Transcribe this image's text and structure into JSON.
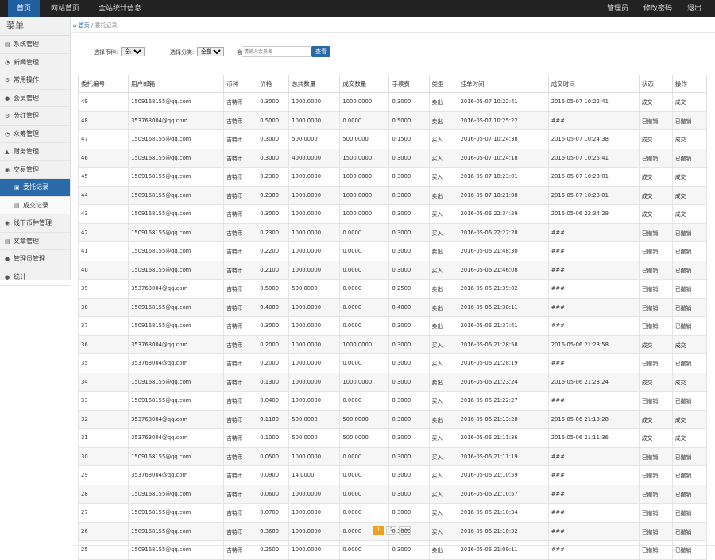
{
  "topbar": {
    "home": "首页",
    "site_home": "网站首页",
    "stats": "全站统计信息",
    "admin": "管理员",
    "change_password": "修改密码",
    "logout": "退出"
  },
  "sidebar": {
    "title": "菜单",
    "items": [
      {
        "icon": "gear-icon",
        "glyph": "▤",
        "label": "系统管理"
      },
      {
        "icon": "clock-icon",
        "glyph": "◔",
        "label": "新闻管理"
      },
      {
        "icon": "gear-icon",
        "glyph": "⚙",
        "label": "常用操作"
      },
      {
        "icon": "user-icon",
        "glyph": "●",
        "label": "会员管理"
      },
      {
        "icon": "gear-icon",
        "glyph": "⚙",
        "label": "分红管理"
      },
      {
        "icon": "clock-icon",
        "glyph": "◔",
        "label": "众筹管理"
      },
      {
        "icon": "fire-icon",
        "glyph": "▲",
        "label": "财务管理"
      },
      {
        "icon": "chevron-circle-icon",
        "glyph": "◉",
        "label": "交易管理"
      },
      {
        "icon": "entrust-icon",
        "glyph": "▣",
        "label": "委托记录",
        "sub": true,
        "active": true
      },
      {
        "icon": "document-icon",
        "glyph": "▤",
        "label": "成交记录",
        "sub": true
      },
      {
        "icon": "chevron-circle-icon",
        "glyph": "◉",
        "label": "线下币种管理"
      },
      {
        "icon": "document-icon",
        "glyph": "▤",
        "label": "文章管理"
      },
      {
        "icon": "user-icon",
        "glyph": "●",
        "label": "管理员管理"
      },
      {
        "icon": "user-icon",
        "glyph": "●",
        "label": "统计"
      }
    ]
  },
  "breadcrumb": {
    "home": "首页",
    "sep": "/",
    "current": "委托记录"
  },
  "filters": {
    "coin_label": "选择币种:",
    "coin_value": "全部",
    "type_label": "选择分类:",
    "type_value": "全部",
    "user_label": "会员名称:",
    "user_placeholder": "请输入会员名",
    "search_button": "查看"
  },
  "table": {
    "headers": [
      "委托编号",
      "用户邮箱",
      "币种",
      "价格",
      "总共数量",
      "成交数量",
      "手续费",
      "类型",
      "挂单时间",
      "成交时间",
      "状态",
      "操作"
    ],
    "rows": [
      [
        "49",
        "1509168155@qq.com",
        "吉特币",
        "0.3000",
        "1000.0000",
        "1000.0000",
        "0.3000",
        "卖出",
        "2016-05-07 10:22:41",
        "2016-05-07 10:22:41",
        "成交",
        "成交"
      ],
      [
        "48",
        "353763004@qq.com",
        "吉特币",
        "0.5000",
        "1000.0000",
        "0.0000",
        "0.5000",
        "卖出",
        "2016-05-07 10:25:22",
        "###",
        "已撤销",
        "已撤销"
      ],
      [
        "47",
        "1509168155@qq.com",
        "吉特币",
        "0.3000",
        "500.0000",
        "500.0000",
        "0.1500",
        "买入",
        "2016-05-07 10:24:38",
        "2016-05-07 10:24:38",
        "成交",
        "成交"
      ],
      [
        "46",
        "1509168155@qq.com",
        "吉特币",
        "0.3000",
        "4000.0000",
        "1500.0000",
        "0.3000",
        "买入",
        "2016-05-07 10:24:18",
        "2016-05-07 10:25:41",
        "已撤销",
        "已撤销"
      ],
      [
        "45",
        "1509168155@qq.com",
        "吉特币",
        "0.2300",
        "1000.0000",
        "1000.0000",
        "0.3000",
        "买入",
        "2016-05-07 10:23:01",
        "2016-05-07 10:23:01",
        "成交",
        "成交"
      ],
      [
        "44",
        "1509168155@qq.com",
        "吉特币",
        "0.2300",
        "1000.0000",
        "1000.0000",
        "0.3000",
        "卖出",
        "2016-05-07 10:21:08",
        "2016-05-07 10:23:01",
        "成交",
        "成交"
      ],
      [
        "43",
        "1509168155@qq.com",
        "吉特币",
        "0.3000",
        "1000.0000",
        "1000.0000",
        "0.3000",
        "买入",
        "2016-05-06 22:34:29",
        "2016-05-06 22:34:29",
        "成交",
        "成交"
      ],
      [
        "42",
        "1509168155@qq.com",
        "吉特币",
        "0.2300",
        "1000.0000",
        "0.0000",
        "0.3000",
        "买入",
        "2016-05-06 22:27:28",
        "###",
        "已撤销",
        "已撤销"
      ],
      [
        "41",
        "1509168155@qq.com",
        "吉特币",
        "0.2200",
        "1000.0000",
        "0.0000",
        "0.3000",
        "卖出",
        "2016-05-06 21:48:30",
        "###",
        "已撤销",
        "已撤销"
      ],
      [
        "40",
        "1509168155@qq.com",
        "吉特币",
        "0.2100",
        "1000.0000",
        "0.0000",
        "0.3000",
        "买入",
        "2016-05-06 21:46:08",
        "###",
        "已撤销",
        "已撤销"
      ],
      [
        "39",
        "353763004@qq.com",
        "吉特币",
        "0.5000",
        "500.0000",
        "0.0000",
        "0.2500",
        "卖出",
        "2016-05-06 21:39:02",
        "###",
        "已撤销",
        "已撤销"
      ],
      [
        "38",
        "1509168155@qq.com",
        "吉特币",
        "0.4000",
        "1000.0000",
        "0.0000",
        "0.4000",
        "卖出",
        "2016-05-06 21:38:11",
        "###",
        "已撤销",
        "已撤销"
      ],
      [
        "37",
        "1509168155@qq.com",
        "吉特币",
        "0.3000",
        "1000.0000",
        "0.0000",
        "0.3000",
        "卖出",
        "2016-05-06 21:37:41",
        "###",
        "已撤销",
        "已撤销"
      ],
      [
        "36",
        "353763004@qq.com",
        "吉特币",
        "0.2000",
        "1000.0000",
        "1000.0000",
        "0.3000",
        "买入",
        "2016-05-06 21:28:58",
        "2016-05-06 21:28:58",
        "成交",
        "成交"
      ],
      [
        "35",
        "353763004@qq.com",
        "吉特币",
        "0.2000",
        "1000.0000",
        "0.0000",
        "0.3000",
        "买入",
        "2016-05-06 21:28:19",
        "###",
        "已撤销",
        "已撤销"
      ],
      [
        "34",
        "1509168155@qq.com",
        "吉特币",
        "0.1300",
        "1000.0000",
        "1000.0000",
        "0.3000",
        "卖出",
        "2016-05-06 21:23:24",
        "2016-05-06 21:23:24",
        "成交",
        "成交"
      ],
      [
        "33",
        "1509168155@qq.com",
        "吉特币",
        "0.0400",
        "1000.0000",
        "0.0000",
        "0.3000",
        "买入",
        "2016-05-06 21:22:27",
        "###",
        "已撤销",
        "已撤销"
      ],
      [
        "32",
        "353763004@qq.com",
        "吉特币",
        "0.1100",
        "500.0000",
        "500.0000",
        "0.3000",
        "卖出",
        "2016-05-06 21:13:28",
        "2016-05-06 21:13:28",
        "成交",
        "成交"
      ],
      [
        "31",
        "353763004@qq.com",
        "吉特币",
        "0.1000",
        "500.0000",
        "500.0000",
        "0.3000",
        "买入",
        "2016-05-06 21:11:36",
        "2016-05-06 21:11:36",
        "成交",
        "成交"
      ],
      [
        "30",
        "1509168155@qq.com",
        "吉特币",
        "0.0500",
        "1000.0000",
        "0.0000",
        "0.3000",
        "买入",
        "2016-05-06 21:11:19",
        "###",
        "已撤销",
        "已撤销"
      ],
      [
        "29",
        "353763004@qq.com",
        "吉特币",
        "0.0900",
        "14.0000",
        "0.0000",
        "0.3000",
        "买入",
        "2016-05-06 21:10:59",
        "###",
        "已撤销",
        "已撤销"
      ],
      [
        "28",
        "1509168155@qq.com",
        "吉特币",
        "0.0600",
        "1000.0000",
        "0.0000",
        "0.3000",
        "买入",
        "2016-05-06 21:10:57",
        "###",
        "已撤销",
        "已撤销"
      ],
      [
        "27",
        "1509168155@qq.com",
        "吉特币",
        "0.0700",
        "1000.0000",
        "0.0000",
        "0.3000",
        "买入",
        "2016-05-06 21:10:34",
        "###",
        "已撤销",
        "已撤销"
      ],
      [
        "26",
        "1509168155@qq.com",
        "吉特币",
        "0.3600",
        "1000.0000",
        "0.0000",
        "0.3000",
        "买入",
        "2016-05-06 21:10:32",
        "###",
        "已撤销",
        "已撤销"
      ],
      [
        "25",
        "1509168155@qq.com",
        "吉特币",
        "0.2500",
        "1000.0000",
        "0.0000",
        "0.3000",
        "卖出",
        "2016-05-06 21:09:11",
        "###",
        "已撤销",
        "已撤销"
      ]
    ]
  },
  "pagination": {
    "current": "1",
    "next": "2",
    "last": ">>"
  }
}
